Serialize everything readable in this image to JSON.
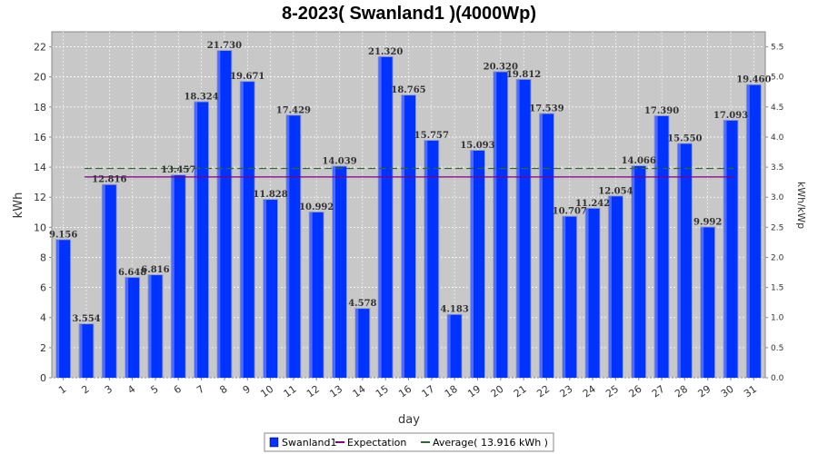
{
  "chart_data": {
    "type": "bar",
    "title": "8-2023( Swanland1 )(4000Wp)",
    "xlabel": "day",
    "ylabel": "kWh",
    "y2label": "kWh/kWp",
    "ylim": [
      0,
      23
    ],
    "y2lim": [
      0,
      5.75
    ],
    "yticks": [
      0,
      2,
      4,
      6,
      8,
      10,
      12,
      14,
      16,
      18,
      20,
      22
    ],
    "y2ticks": [
      "0.0",
      "0.5",
      "1.0",
      "1.5",
      "2.0",
      "2.5",
      "3.0",
      "3.5",
      "4.0",
      "4.5",
      "5.0",
      "5.5"
    ],
    "categories": [
      "1",
      "2",
      "3",
      "4",
      "5",
      "6",
      "7",
      "8",
      "9",
      "10",
      "11",
      "12",
      "13",
      "14",
      "15",
      "16",
      "17",
      "18",
      "19",
      "20",
      "21",
      "22",
      "23",
      "24",
      "25",
      "26",
      "27",
      "28",
      "29",
      "30",
      "31"
    ],
    "series": [
      {
        "name": "Swanland1",
        "color": "#0033ff",
        "values": [
          9.156,
          3.554,
          12.816,
          6.648,
          6.816,
          13.457,
          18.324,
          21.73,
          19.671,
          11.828,
          17.429,
          10.992,
          14.039,
          4.578,
          21.32,
          18.765,
          15.757,
          4.183,
          15.093,
          20.32,
          19.812,
          17.539,
          10.707,
          11.242,
          12.054,
          14.066,
          17.39,
          15.55,
          9.992,
          17.093,
          19.46
        ],
        "labels": [
          "9.156",
          "3.554",
          "12.816",
          "6.648",
          "6.816",
          "13.457",
          "18.324",
          "21.730",
          "19.671",
          "11.828",
          "17.429",
          "10.992",
          "14.039",
          "4.578",
          "21.320",
          "18.765",
          "15.757",
          "4.183",
          "15.093",
          "20.320",
          "19.812",
          "17.539",
          "10.707",
          "11.242",
          "12.054",
          "14.066",
          "17.390",
          "15.550",
          "9.992",
          "17.093",
          "19.460"
        ]
      }
    ],
    "lines": [
      {
        "name": "Expectation",
        "color": "#800080",
        "value": 13.35
      },
      {
        "name": "Average( 13.916 kWh )",
        "color": "#336633",
        "value": 13.916,
        "dashed": true
      }
    ],
    "legend": [
      "Swanland1",
      "Expectation",
      "Average( 13.916 kWh )"
    ],
    "legend_position": "bottom",
    "grid": true,
    "plot_background": "#c8c8c8"
  }
}
